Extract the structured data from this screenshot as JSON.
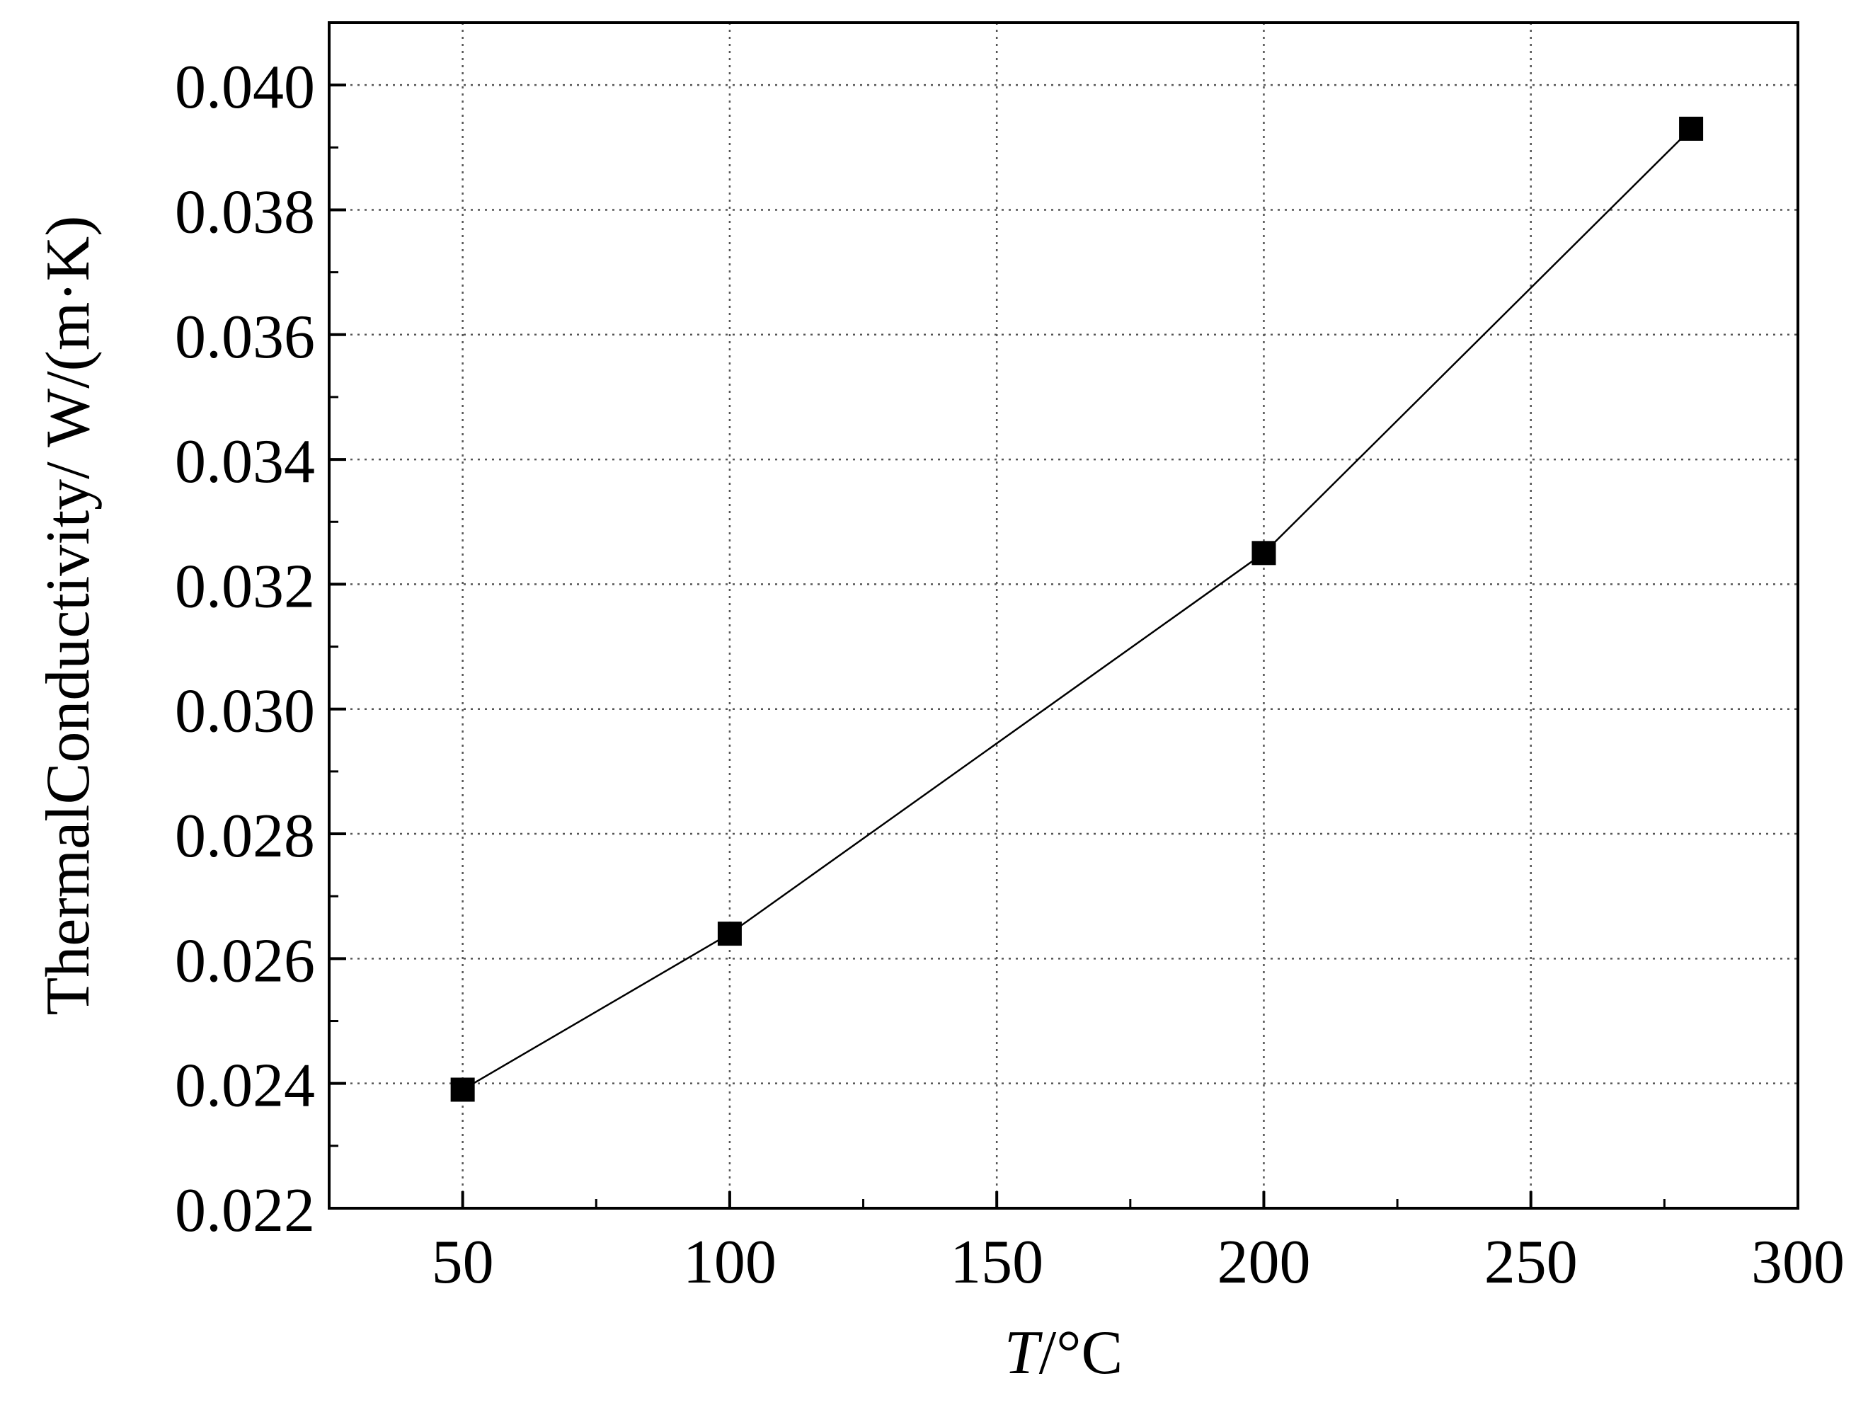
{
  "chart_data": {
    "type": "line",
    "title": "",
    "xlabel": "T/°C",
    "xlabel_parts": {
      "italic": "T",
      "rest": "/°C"
    },
    "ylabel": "ThermalConductivity/ W/(m·K)",
    "xlim": [
      25,
      300
    ],
    "ylim": [
      0.022,
      0.041
    ],
    "x_ticks": [
      50,
      100,
      150,
      200,
      250,
      300
    ],
    "x_tick_labels": [
      "50",
      "100",
      "150",
      "200",
      "250",
      "300"
    ],
    "x_minor_ticks": [
      75,
      125,
      175,
      225,
      275
    ],
    "y_ticks": [
      0.022,
      0.024,
      0.026,
      0.028,
      0.03,
      0.032,
      0.034,
      0.036,
      0.038,
      0.04
    ],
    "y_tick_labels": [
      "0.022",
      "0.024",
      "0.026",
      "0.028",
      "0.030",
      "0.032",
      "0.034",
      "0.036",
      "0.038",
      "0.040"
    ],
    "y_minor_ticks": [
      0.023,
      0.025,
      0.027,
      0.029,
      0.031,
      0.033,
      0.035,
      0.037,
      0.039
    ],
    "grid": true,
    "marker": "square",
    "series": [
      {
        "x": [
          50,
          100,
          200,
          280
        ],
        "y": [
          0.0239,
          0.0264,
          0.0325,
          0.0393
        ],
        "color": "#000000"
      }
    ]
  }
}
